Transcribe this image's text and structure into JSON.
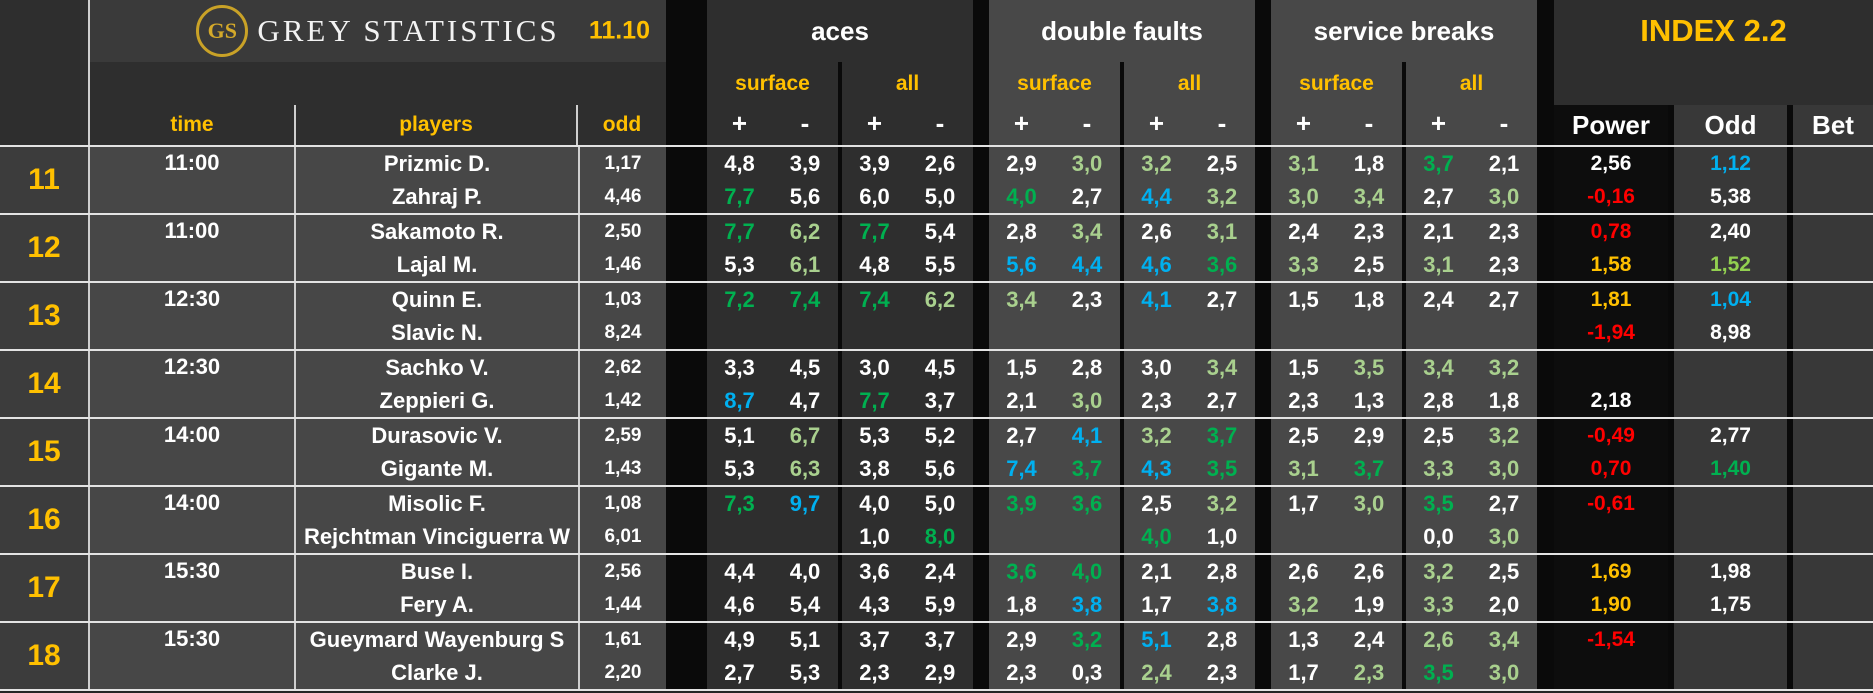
{
  "brand": {
    "logo": "GS",
    "name": "GREY STATISTICS",
    "date": "11.10"
  },
  "header": {
    "sections": {
      "aces": "aces",
      "double_faults": "double faults",
      "service_breaks": "service breaks",
      "index": "INDEX 2.2"
    },
    "sub": {
      "surface": "surface",
      "all": "all",
      "plus": "+",
      "minus": "-"
    },
    "cols": {
      "time": "time",
      "players": "players",
      "odd": "odd",
      "power": "Power",
      "odd2": "Odd",
      "bet": "Bet"
    }
  },
  "colors": {
    "w": "#ffffff",
    "pg": "#a9d08e",
    "bg": "#00b050",
    "bl": "#00b0f0",
    "r": "#ff0000",
    "gold": "#ffc000",
    "lime": "#92d050"
  },
  "groups": [
    {
      "num": "11",
      "time": "11:00",
      "rows": [
        {
          "player": "Prizmic D.",
          "odd": "1,17",
          "stats": [
            "4,8|w",
            "3,9|w",
            "3,9|w",
            "2,6|w",
            "2,9|w",
            "3,0|pg",
            "3,2|pg",
            "2,5|w",
            "3,1|pg",
            "1,8|w",
            "3,7|bg",
            "2,1|w"
          ],
          "power": "2,56|w",
          "odd2": "1,12|bl",
          "bet": ""
        },
        {
          "player": "Zahraj P.",
          "odd": "4,46",
          "stats": [
            "7,7|bg",
            "5,6|w",
            "6,0|w",
            "5,0|w",
            "4,0|bg",
            "2,7|w",
            "4,4|bl",
            "3,2|pg",
            "3,0|pg",
            "3,4|pg",
            "2,7|w",
            "3,0|pg"
          ],
          "power": "-0,16|r",
          "odd2": "5,38|w",
          "bet": ""
        }
      ]
    },
    {
      "num": "12",
      "time": "11:00",
      "rows": [
        {
          "player": "Sakamoto R.",
          "odd": "2,50",
          "stats": [
            "7,7|bg",
            "6,2|pg",
            "7,7|bg",
            "5,4|w",
            "2,8|w",
            "3,4|pg",
            "2,6|w",
            "3,1|pg",
            "2,4|w",
            "2,3|w",
            "2,1|w",
            "2,3|w"
          ],
          "power": "0,78|r",
          "odd2": "2,40|w",
          "bet": ""
        },
        {
          "player": "Lajal M.",
          "odd": "1,46",
          "stats": [
            "5,3|w",
            "6,1|pg",
            "4,8|w",
            "5,5|w",
            "5,6|bl",
            "4,4|bl",
            "4,6|bl",
            "3,6|bg",
            "3,3|pg",
            "2,5|w",
            "3,1|pg",
            "2,3|w"
          ],
          "power": "1,58|gold",
          "odd2": "1,52|lime",
          "bet": ""
        }
      ]
    },
    {
      "num": "13",
      "time": "12:30",
      "rows": [
        {
          "player": "Quinn E.",
          "odd": "1,03",
          "stats": [
            "7,2|bg",
            "7,4|bg",
            "7,4|bg",
            "6,2|pg",
            "3,4|pg",
            "2,3|w",
            "4,1|bl",
            "2,7|w",
            "1,5|w",
            "1,8|w",
            "2,4|w",
            "2,7|w"
          ],
          "power": "1,81|gold",
          "odd2": "1,04|bl",
          "bet": ""
        },
        {
          "player": "Slavic N.",
          "odd": "8,24",
          "stats": [
            "",
            "",
            "",
            "",
            "",
            "",
            "",
            "",
            "",
            "",
            "",
            ""
          ],
          "power": "-1,94|r",
          "odd2": "8,98|w",
          "bet": ""
        }
      ]
    },
    {
      "num": "14",
      "time": "12:30",
      "rows": [
        {
          "player": "Sachko V.",
          "odd": "2,62",
          "stats": [
            "3,3|w",
            "4,5|w",
            "3,0|w",
            "4,5|w",
            "1,5|w",
            "2,8|w",
            "3,0|w",
            "3,4|pg",
            "1,5|w",
            "3,5|pg",
            "3,4|pg",
            "3,2|pg"
          ],
          "power": "",
          "odd2": "",
          "bet": ""
        },
        {
          "player": "Zeppieri G.",
          "odd": "1,42",
          "stats": [
            "8,7|bl",
            "4,7|w",
            "7,7|bg",
            "3,7|w",
            "2,1|w",
            "3,0|pg",
            "2,3|w",
            "2,7|w",
            "2,3|w",
            "1,3|w",
            "2,8|w",
            "1,8|w"
          ],
          "power": "2,18|w",
          "odd2": "",
          "bet": ""
        }
      ]
    },
    {
      "num": "15",
      "time": "14:00",
      "rows": [
        {
          "player": "Durasovic V.",
          "odd": "2,59",
          "stats": [
            "5,1|w",
            "6,7|pg",
            "5,3|w",
            "5,2|w",
            "2,7|w",
            "4,1|bl",
            "3,2|pg",
            "3,7|bg",
            "2,5|w",
            "2,9|w",
            "2,5|w",
            "3,2|pg"
          ],
          "power": "-0,49|r",
          "odd2": "2,77|w",
          "bet": ""
        },
        {
          "player": "Gigante M.",
          "odd": "1,43",
          "stats": [
            "5,3|w",
            "6,3|pg",
            "3,8|w",
            "5,6|w",
            "7,4|bl",
            "3,7|bg",
            "4,3|bl",
            "3,5|bg",
            "3,1|pg",
            "3,7|bg",
            "3,3|pg",
            "3,0|pg"
          ],
          "power": "0,70|r",
          "odd2": "1,40|bg",
          "bet": ""
        }
      ]
    },
    {
      "num": "16",
      "time": "14:00",
      "rows": [
        {
          "player": "Misolic F.",
          "odd": "1,08",
          "stats": [
            "7,3|bg",
            "9,7|bl",
            "4,0|w",
            "5,0|w",
            "3,9|bg",
            "3,6|bg",
            "2,5|w",
            "3,2|pg",
            "1,7|w",
            "3,0|pg",
            "3,5|bg",
            "2,7|w"
          ],
          "power": "-0,61|r",
          "odd2": "",
          "bet": ""
        },
        {
          "player": "Rejchtman Vinciguerra W",
          "odd": "6,01",
          "stats": [
            "",
            "",
            "1,0|w",
            "8,0|bg",
            "",
            "",
            "4,0|bg",
            "1,0|w",
            "",
            "",
            "0,0|w",
            "3,0|pg"
          ],
          "power": "",
          "odd2": "",
          "bet": ""
        }
      ]
    },
    {
      "num": "17",
      "time": "15:30",
      "rows": [
        {
          "player": "Buse I.",
          "odd": "2,56",
          "stats": [
            "4,4|w",
            "4,0|w",
            "3,6|w",
            "2,4|w",
            "3,6|bg",
            "4,0|bg",
            "2,1|w",
            "2,8|w",
            "2,6|w",
            "2,6|w",
            "3,2|pg",
            "2,5|w"
          ],
          "power": "1,69|gold",
          "odd2": "1,98|w",
          "bet": ""
        },
        {
          "player": "Fery A.",
          "odd": "1,44",
          "stats": [
            "4,6|w",
            "5,4|w",
            "4,3|w",
            "5,9|w",
            "1,8|w",
            "3,8|bl",
            "1,7|w",
            "3,8|bl",
            "3,2|pg",
            "1,9|w",
            "3,3|pg",
            "2,0|w"
          ],
          "power": "1,90|gold",
          "odd2": "1,75|w",
          "bet": ""
        }
      ]
    },
    {
      "num": "18",
      "time": "15:30",
      "rows": [
        {
          "player": "Gueymard Wayenburg S",
          "odd": "1,61",
          "stats": [
            "4,9|w",
            "5,1|w",
            "3,7|w",
            "3,7|w",
            "2,9|w",
            "3,2|bg",
            "5,1|bl",
            "2,8|w",
            "1,3|w",
            "2,4|w",
            "2,6|pg",
            "3,4|pg"
          ],
          "power": "-1,54|r",
          "odd2": "",
          "bet": ""
        },
        {
          "player": "Clarke J.",
          "odd": "2,20",
          "stats": [
            "2,7|w",
            "5,3|w",
            "2,3|w",
            "2,9|w",
            "2,3|w",
            "0,3|w",
            "2,4|pg",
            "2,3|w",
            "1,7|w",
            "2,3|pg",
            "3,5|bg",
            "3,0|pg"
          ],
          "power": "",
          "odd2": "",
          "bet": ""
        }
      ]
    }
  ]
}
